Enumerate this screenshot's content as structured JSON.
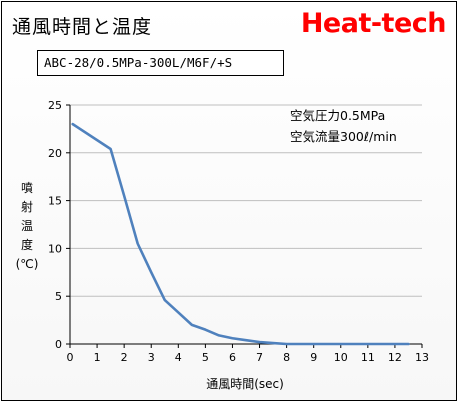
{
  "header": {
    "title": "通風時間と温度",
    "brand": "Heat-tech",
    "model": "ABC-28/0.5MPa-300L/M6F/+S"
  },
  "colors": {
    "brand": "#ff0000",
    "series_line": "#4f81bd",
    "gridline": "#bfbfbf"
  },
  "chart_data": {
    "type": "line",
    "xlabel": "通風時間(sec)",
    "ylabel": "噴射温度(℃)",
    "ylabel_chars": [
      "噴",
      "射",
      "温",
      "度",
      "(℃)"
    ],
    "xlim": [
      0,
      13
    ],
    "ylim": [
      0,
      25
    ],
    "xticks": [
      0,
      1,
      2,
      3,
      4,
      5,
      6,
      7,
      8,
      9,
      10,
      11,
      12,
      13
    ],
    "yticks": [
      0,
      5,
      10,
      15,
      20,
      25
    ],
    "grid": "horizontal",
    "annotations": [
      "空気圧力0.5MPa",
      "空気流量300ℓ/min"
    ],
    "series": [
      {
        "x": [
          0.1,
          1.5,
          2.0,
          2.5,
          3.0,
          3.5,
          4.0,
          4.5,
          5.0,
          5.5,
          6.0,
          6.5,
          7.0,
          7.5,
          8.0,
          12.5
        ],
        "y": [
          23.0,
          20.4,
          15.5,
          10.5,
          7.5,
          4.6,
          3.3,
          2.0,
          1.5,
          0.9,
          0.6,
          0.4,
          0.2,
          0.1,
          0.0,
          0.0
        ]
      }
    ]
  }
}
